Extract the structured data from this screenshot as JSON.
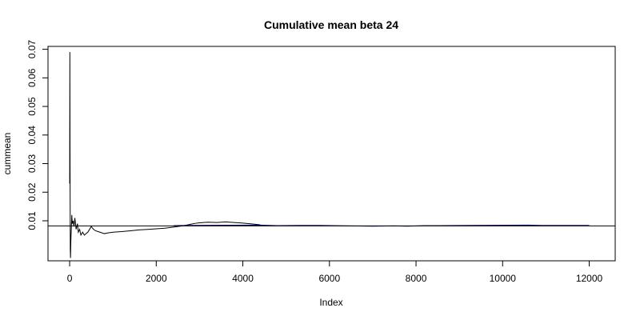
{
  "chart_data": {
    "type": "line",
    "title": "Cumulative mean beta 24",
    "xlabel": "Index",
    "ylabel": "cummean",
    "xlim": [
      -500,
      12600
    ],
    "ylim": [
      -0.004,
      0.071
    ],
    "xticks": [
      0,
      2000,
      4000,
      6000,
      8000,
      10000,
      12000
    ],
    "xtick_labels": [
      "0",
      "2000",
      "4000",
      "6000",
      "8000",
      "10000",
      "12000"
    ],
    "yticks": [
      0.01,
      0.02,
      0.03,
      0.04,
      0.05,
      0.06,
      0.07
    ],
    "ytick_labels": [
      "0.01",
      "0.02",
      "0.03",
      "0.04",
      "0.05",
      "0.06",
      "0.07"
    ],
    "grid": false,
    "hline": 0.0082,
    "series": [
      {
        "color": "#000000",
        "x": [
          1,
          5,
          10,
          15,
          20,
          30,
          40,
          50,
          60,
          80,
          100,
          120,
          150,
          180,
          200,
          230,
          260,
          300,
          340,
          380,
          420,
          460,
          500,
          550,
          600,
          700,
          800,
          900,
          1000,
          1200,
          1400,
          1600,
          1800,
          2000,
          2200,
          2400,
          2500,
          2600
        ],
        "y": [
          0.023,
          0.069,
          0.026,
          0.0,
          -0.003,
          0.004,
          0.008,
          0.012,
          0.009,
          0.01,
          0.008,
          0.011,
          0.007,
          0.009,
          0.006,
          0.007,
          0.005,
          0.006,
          0.005,
          0.0055,
          0.006,
          0.007,
          0.008,
          0.007,
          0.0065,
          0.006,
          0.0055,
          0.0058,
          0.006,
          0.0062,
          0.0065,
          0.0068,
          0.007,
          0.0072,
          0.0074,
          0.0078,
          0.008,
          0.0082
        ]
      },
      {
        "color": "#000000",
        "x": [
          2600,
          2700,
          2800,
          2900,
          3000,
          3200,
          3400,
          3600,
          3800,
          4000,
          4200,
          4400
        ],
        "y": [
          0.0082,
          0.0085,
          0.0088,
          0.0091,
          0.0093,
          0.0095,
          0.0094,
          0.0096,
          0.0094,
          0.0092,
          0.0089,
          0.0086
        ]
      },
      {
        "color": "#000080",
        "x": [
          2400,
          2700,
          4400,
          4800,
          5300,
          5800,
          6100,
          6500,
          7000,
          7500,
          7800,
          8200,
          8500,
          9200,
          10600,
          10900,
          12000
        ],
        "y": [
          0.0083,
          0.0084,
          0.0085,
          0.0083,
          0.0084,
          0.0084,
          0.0083,
          0.0082,
          0.0081,
          0.0082,
          0.0081,
          0.0083,
          0.0083,
          0.0084,
          0.0085,
          0.0084,
          0.0084
        ]
      }
    ]
  }
}
